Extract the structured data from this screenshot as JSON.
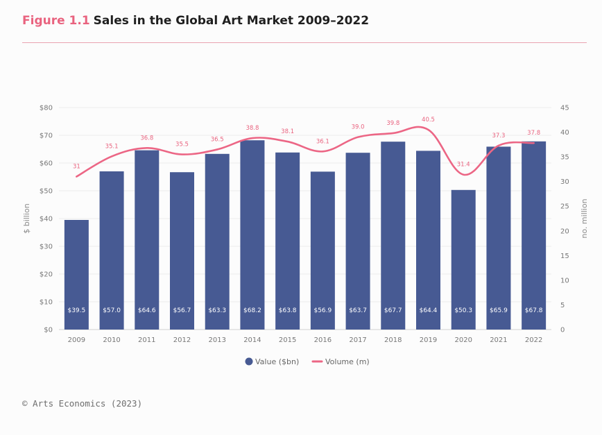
{
  "header": {
    "figure_label": "Figure 1.1",
    "title": "Sales in the Global Art Market 2009–2022"
  },
  "footer": {
    "source": "© Arts Economics (2023)"
  },
  "colors": {
    "bar": "#475a93",
    "line": "#ec6685",
    "accent": "#e9637f",
    "rule": "#e9a2b0"
  },
  "chart_data": {
    "type": "bar",
    "title": "",
    "categories": [
      "2009",
      "2010",
      "2011",
      "2012",
      "2013",
      "2014",
      "2015",
      "2016",
      "2017",
      "2018",
      "2019",
      "2020",
      "2021",
      "2022"
    ],
    "series": [
      {
        "name": "Value ($bn)",
        "type": "bar",
        "axis": "left",
        "values": [
          39.5,
          57.0,
          64.6,
          56.7,
          63.3,
          68.2,
          63.8,
          56.9,
          63.7,
          67.7,
          64.4,
          50.3,
          65.9,
          67.8
        ],
        "labels": [
          "$39.5",
          "$57.0",
          "$64.6",
          "$56.7",
          "$63.3",
          "$68.2",
          "$63.8",
          "$56.9",
          "$63.7",
          "$67.7",
          "$64.4",
          "$50.3",
          "$65.9",
          "$67.8"
        ]
      },
      {
        "name": "Volume (m)",
        "type": "line",
        "axis": "right",
        "values": [
          31,
          35.1,
          36.8,
          35.5,
          36.5,
          38.8,
          38.1,
          36.1,
          39.0,
          39.8,
          40.5,
          31.4,
          37.3,
          37.8
        ],
        "labels": [
          "31",
          "35.1",
          "36.8",
          "35.5",
          "36.5",
          "38.8",
          "38.1",
          "36.1",
          "39.0",
          "39.8",
          "40.5",
          "31.4",
          "37.3",
          "37.8"
        ]
      }
    ],
    "ylabel": "$ billion",
    "ylim": [
      0,
      80
    ],
    "yticks": [
      "$0",
      "$10",
      "$20",
      "$30",
      "$40",
      "$50",
      "$60",
      "$70",
      "$80"
    ],
    "y2label": "no. million",
    "y2lim": [
      0,
      45
    ],
    "y2ticks": [
      "0",
      "5",
      "10",
      "15",
      "20",
      "25",
      "30",
      "35",
      "40",
      "45"
    ],
    "grid": true,
    "legend_position": "bottom-center"
  }
}
